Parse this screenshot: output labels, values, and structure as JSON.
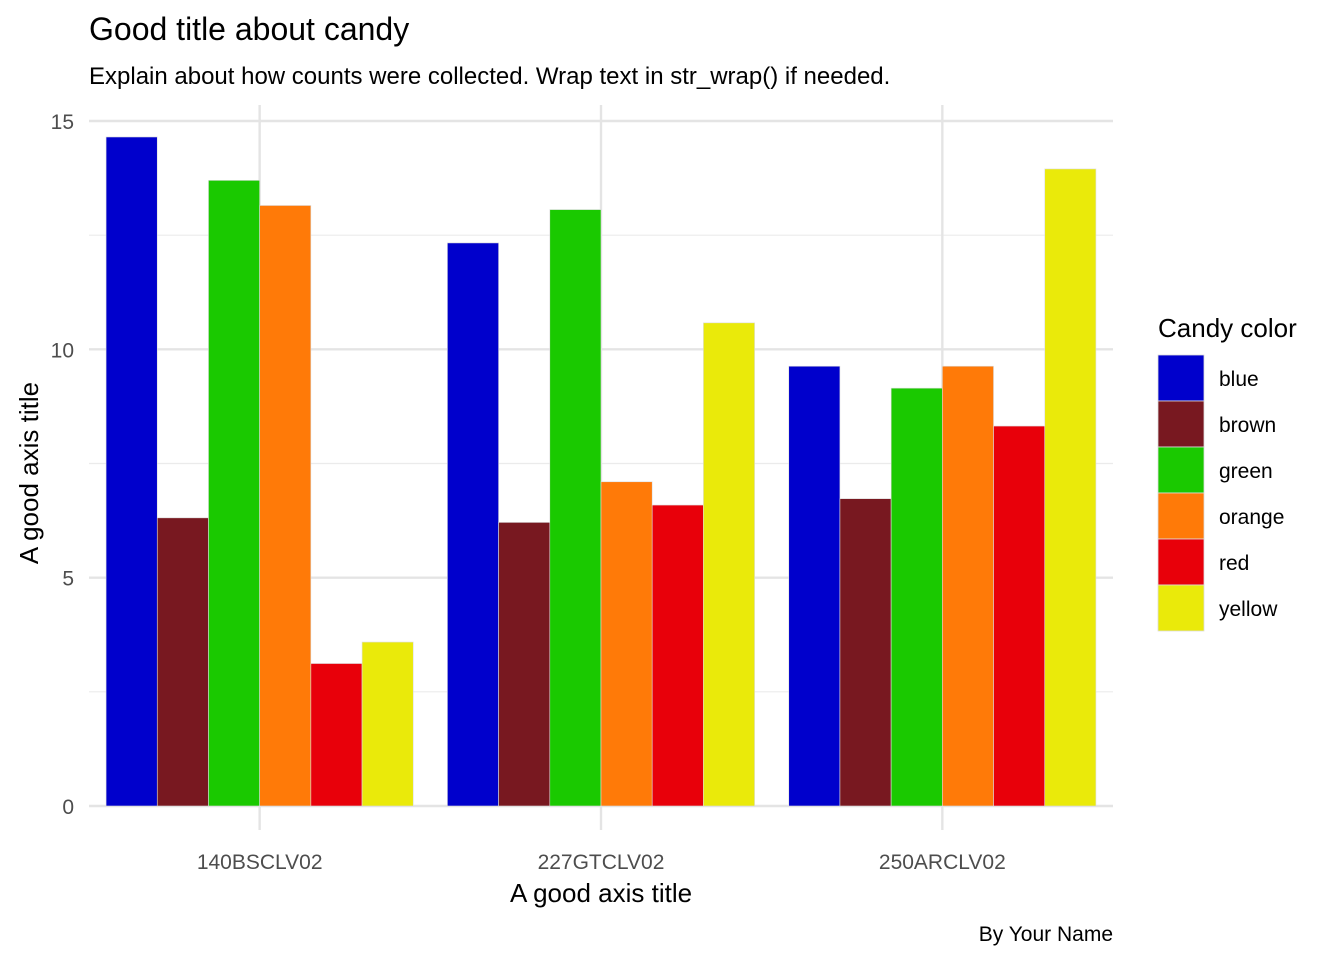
{
  "chart_data": {
    "type": "bar",
    "title": "Good title about candy",
    "subtitle": "Explain about how counts were collected. Wrap text in str_wrap() if needed.",
    "caption": "By Your Name",
    "xlabel": "A good axis title",
    "ylabel": "A good axis title",
    "categories": [
      "140BSCLV02",
      "227GTCLV02",
      "250ARCLV02"
    ],
    "ylim": [
      0,
      15
    ],
    "yticks": [
      0,
      5,
      10,
      15
    ],
    "grid": true,
    "legend": {
      "title": "Candy color",
      "position": "right"
    },
    "series": [
      {
        "name": "blue",
        "color": "#0000CC",
        "values": [
          14.65,
          12.33,
          9.63
        ]
      },
      {
        "name": "brown",
        "color": "#781820",
        "values": [
          6.31,
          6.21,
          6.73
        ]
      },
      {
        "name": "green",
        "color": "#1AC900",
        "values": [
          13.7,
          13.06,
          9.15
        ]
      },
      {
        "name": "orange",
        "color": "#FF7A08",
        "values": [
          13.15,
          7.1,
          9.63
        ]
      },
      {
        "name": "red",
        "color": "#E8000A",
        "values": [
          3.12,
          6.59,
          8.32
        ]
      },
      {
        "name": "yellow",
        "color": "#EAEA0A",
        "values": [
          3.59,
          10.58,
          13.95
        ]
      }
    ]
  }
}
